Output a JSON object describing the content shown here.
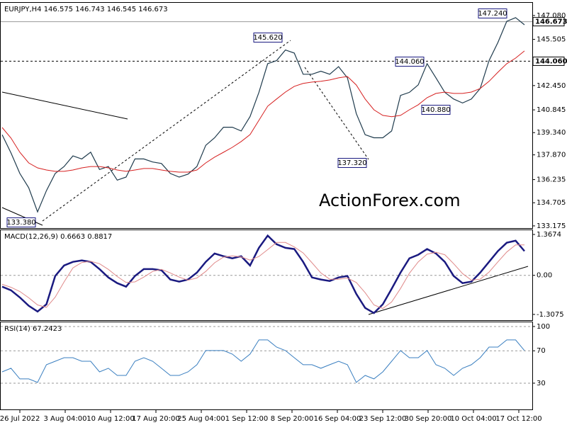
{
  "chart_data": [
    {
      "type": "line",
      "title": "EURJPY,H4 146.575 146.743 146.545 146.673",
      "ylim": [
        133.03,
        147.92
      ],
      "yticks": [
        {
          "value": 147.08,
          "label": "147.080"
        },
        145.505,
        {
          "value": 142.45,
          "label": "142.450"
        },
        140.845,
        {
          "value": 139.34,
          "label": "139.340"
        },
        {
          "value": 137.87,
          "label": "137.870"
        },
        136.235,
        134.705,
        133.175
      ],
      "series": [
        {
          "name": "Price",
          "color": "#1f3b4d",
          "width": 1.2,
          "values": [
            139.2,
            138.0,
            136.64,
            135.7,
            134.1,
            135.5,
            136.64,
            137.1,
            137.8,
            137.6,
            138.05,
            136.9,
            137.1,
            136.2,
            136.4,
            137.6,
            137.6,
            137.4,
            137.3,
            136.64,
            136.4,
            136.6,
            137.1,
            138.5,
            139.0,
            139.7,
            139.7,
            139.45,
            140.4,
            142.0,
            143.9,
            144.1,
            144.8,
            144.6,
            143.2,
            143.2,
            143.4,
            143.2,
            143.7,
            142.96,
            140.6,
            139.2,
            139.0,
            139.0,
            139.45,
            141.8,
            142.0,
            142.5,
            143.9,
            142.96,
            142.0,
            141.56,
            141.3,
            141.56,
            142.26,
            144.1,
            145.3,
            146.7,
            146.94,
            146.47
          ]
        },
        {
          "name": "MA",
          "color": "#d62020",
          "width": 1,
          "values": [
            139.68,
            138.98,
            138.04,
            137.34,
            137.01,
            136.87,
            136.78,
            136.78,
            136.87,
            137.01,
            137.1,
            137.1,
            137.01,
            136.87,
            136.78,
            136.87,
            136.97,
            136.97,
            136.87,
            136.78,
            136.73,
            136.73,
            136.87,
            137.34,
            137.72,
            138.04,
            138.37,
            138.75,
            139.21,
            140.15,
            141.09,
            141.56,
            142.02,
            142.4,
            142.59,
            142.68,
            142.73,
            142.82,
            142.96,
            143.05,
            142.49,
            141.56,
            140.85,
            140.48,
            140.39,
            140.48,
            140.85,
            141.18,
            141.65,
            141.93,
            142.02,
            141.93,
            141.93,
            142.02,
            142.26,
            142.73,
            143.33,
            143.9,
            144.27,
            144.74
          ]
        }
      ],
      "hlines": [
        {
          "value": 144.06,
          "label": "144.060",
          "dash": true
        },
        {
          "value": 146.673,
          "label": "146.673",
          "dash": false
        }
      ],
      "annotations": [
        "147.240",
        "145.620",
        "144.060",
        "140.880",
        "137.320",
        "133.380"
      ]
    },
    {
      "type": "line",
      "title": "MACD(12,26,9) 0.6663 0.8817",
      "ylim": [
        -1.5,
        1.51
      ],
      "yticks": [
        1.3674,
        {
          "value": 0,
          "label": "0.00"
        },
        -1.3075
      ],
      "zero_line": true,
      "series": [
        {
          "name": "MACD",
          "color": "#1a1a80",
          "width": 2.5,
          "values": [
            -0.38,
            -0.5,
            -0.74,
            -1.02,
            -1.21,
            -0.97,
            -0.02,
            0.33,
            0.45,
            0.5,
            0.45,
            0.21,
            -0.07,
            -0.26,
            -0.38,
            -0.02,
            0.21,
            0.21,
            0.17,
            -0.14,
            -0.21,
            -0.14,
            0.09,
            0.45,
            0.73,
            0.64,
            0.57,
            0.64,
            0.33,
            0.92,
            1.33,
            1.04,
            0.92,
            0.88,
            0.45,
            -0.07,
            -0.14,
            -0.19,
            -0.07,
            -0.02,
            -0.62,
            -1.09,
            -1.26,
            -0.97,
            -0.45,
            0.09,
            0.57,
            0.69,
            0.88,
            0.73,
            0.45,
            -0.02,
            -0.26,
            -0.21,
            0.09,
            0.45,
            0.81,
            1.09,
            1.16,
            0.81
          ]
        },
        {
          "name": "Signal",
          "color": "#e08a8a",
          "width": 1,
          "values": [
            -0.3,
            -0.4,
            -0.54,
            -0.75,
            -0.99,
            -1.07,
            -0.73,
            -0.22,
            0.25,
            0.43,
            0.47,
            0.39,
            0.2,
            -0.04,
            -0.24,
            -0.22,
            -0.06,
            0.13,
            0.2,
            0.08,
            -0.06,
            -0.16,
            -0.09,
            0.13,
            0.42,
            0.61,
            0.65,
            0.62,
            0.51,
            0.63,
            0.86,
            1.1,
            1.1,
            0.95,
            0.75,
            0.42,
            0.08,
            -0.13,
            -0.13,
            -0.09,
            -0.24,
            -0.58,
            -0.99,
            -1.11,
            -0.89,
            -0.44,
            0.07,
            0.45,
            0.71,
            0.77,
            0.69,
            0.39,
            0.06,
            -0.16,
            -0.13,
            0.11,
            0.45,
            0.78,
            1.02,
            1.02
          ]
        }
      ]
    },
    {
      "type": "line",
      "title": "RSI(14) 67.2423",
      "ylim": [
        -2.4,
        105.2
      ],
      "yticks": [
        100,
        70,
        30
      ],
      "grid": true,
      "series": [
        {
          "name": "RSI",
          "color": "#3a7fc0",
          "width": 1,
          "values": [
            44.0,
            48.4,
            35.3,
            35.3,
            30.9,
            52.8,
            57.1,
            61.5,
            61.5,
            57.1,
            57.1,
            44.0,
            48.4,
            39.6,
            39.6,
            57.1,
            61.5,
            57.1,
            48.4,
            39.6,
            39.6,
            44.0,
            52.8,
            70.3,
            70.3,
            70.3,
            65.9,
            57.1,
            65.9,
            83.4,
            83.4,
            74.6,
            70.3,
            61.5,
            52.8,
            52.8,
            48.4,
            52.8,
            57.1,
            52.8,
            30.9,
            39.6,
            35.3,
            44.0,
            57.1,
            70.3,
            61.5,
            61.5,
            70.3,
            52.8,
            48.4,
            39.6,
            48.4,
            52.8,
            61.5,
            74.6,
            74.6,
            83.4,
            83.4,
            70.3
          ]
        }
      ],
      "x_labels": [
        "26 Jul 2022",
        "3 Aug 04:00",
        "10 Aug 12:00",
        "17 Aug 20:00",
        "25 Aug 04:00",
        "1 Sep 12:00",
        "8 Sep 20:00",
        "16 Sep 04:00",
        "23 Sep 12:00",
        "30 Sep 20:00",
        "10 Oct 04:00",
        "17 Oct 12:00"
      ]
    }
  ]
}
